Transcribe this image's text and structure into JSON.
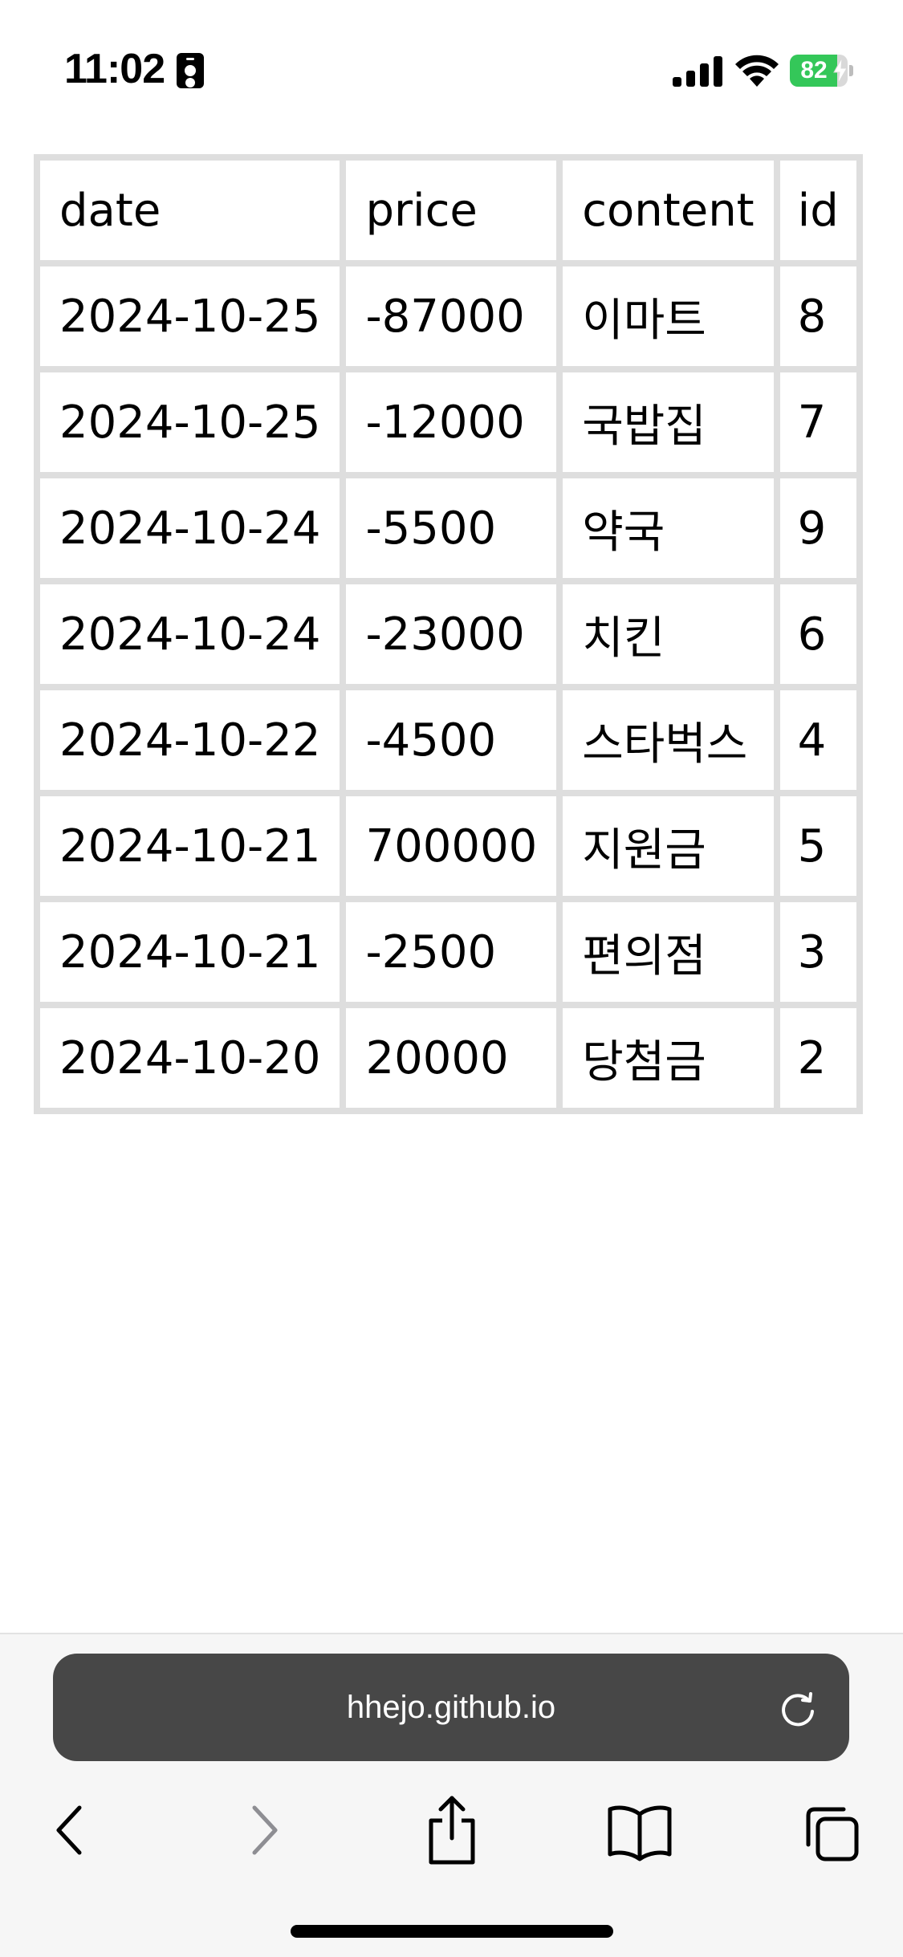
{
  "status_bar": {
    "time": "11:02",
    "battery_level": "82",
    "battery_color": "#34c759",
    "icons": [
      "contact-card-icon",
      "cellular-signal-icon",
      "wifi-icon",
      "battery-icon",
      "charging-bolt-icon"
    ]
  },
  "table": {
    "headers": {
      "date": "date",
      "price": "price",
      "content": "content",
      "id": "id"
    },
    "rows": [
      {
        "date": "2024-10-25",
        "price": "-87000",
        "content": "이마트",
        "id": "8"
      },
      {
        "date": "2024-10-25",
        "price": "-12000",
        "content": "국밥집",
        "id": "7"
      },
      {
        "date": "2024-10-24",
        "price": "-5500",
        "content": "약국",
        "id": "9"
      },
      {
        "date": "2024-10-24",
        "price": "-23000",
        "content": "치킨",
        "id": "6"
      },
      {
        "date": "2024-10-22",
        "price": "-4500",
        "content": "스타벅스",
        "id": "4"
      },
      {
        "date": "2024-10-21",
        "price": "700000",
        "content": "지원금",
        "id": "5"
      },
      {
        "date": "2024-10-21",
        "price": "-2500",
        "content": "편의점",
        "id": "3"
      },
      {
        "date": "2024-10-20",
        "price": "20000",
        "content": "당첨금",
        "id": "2"
      }
    ]
  },
  "browser": {
    "url": "hhejo.github.io",
    "toolbar_icons": [
      "back-icon",
      "forward-icon",
      "share-icon",
      "bookmarks-icon",
      "tabs-icon",
      "reload-icon"
    ]
  },
  "colors": {
    "table_border": "#dedede",
    "address_bar": "#474747",
    "toolbar_background": "#f6f6f6",
    "forward_disabled": "#8e8e93"
  }
}
